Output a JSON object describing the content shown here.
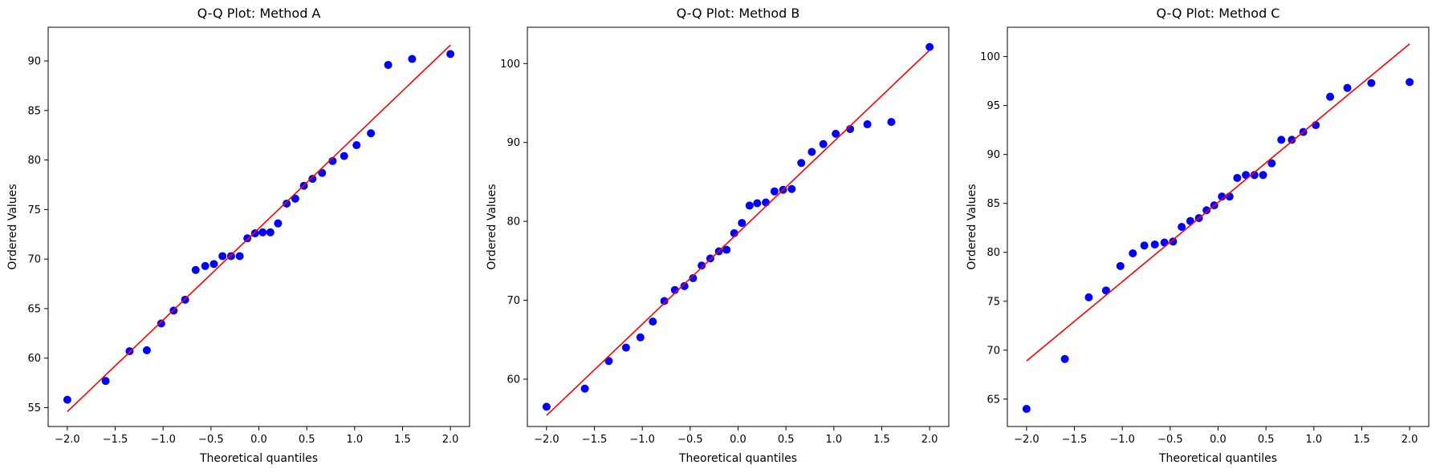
{
  "chart_data": [
    {
      "type": "scatter",
      "title": "Q-Q Plot: Method A",
      "xlabel": "Theoretical quantiles",
      "ylabel": "Ordered Values",
      "xlim": [
        -2.2,
        2.2
      ],
      "ylim": [
        53.1,
        93.4
      ],
      "xticks": [
        -2.0,
        -1.5,
        -1.0,
        -0.5,
        0.0,
        0.5,
        1.0,
        1.5,
        2.0
      ],
      "xtick_labels": [
        "−2.0",
        "−1.5",
        "−1.0",
        "−0.5",
        "0.0",
        "0.5",
        "1.0",
        "1.5",
        "2.0"
      ],
      "yticks": [
        55,
        60,
        65,
        70,
        75,
        80,
        85,
        90
      ],
      "ytick_labels": [
        "55",
        "60",
        "65",
        "70",
        "75",
        "80",
        "85",
        "90"
      ],
      "grid": false,
      "point_color": "#0000ff",
      "line_color": "#ff0000",
      "points": {
        "x": [
          -2.0,
          -1.6,
          -1.35,
          -1.17,
          -1.02,
          -0.89,
          -0.77,
          -0.66,
          -0.56,
          -0.47,
          -0.38,
          -0.29,
          -0.2,
          -0.12,
          -0.04,
          0.04,
          0.12,
          0.2,
          0.29,
          0.38,
          0.47,
          0.56,
          0.66,
          0.77,
          0.89,
          1.02,
          1.17,
          1.35,
          1.6,
          2.0
        ],
        "y": [
          55.8,
          57.7,
          60.7,
          60.8,
          63.5,
          64.8,
          65.9,
          68.9,
          69.3,
          69.5,
          70.3,
          70.3,
          70.3,
          72.1,
          72.6,
          72.7,
          72.7,
          73.6,
          75.6,
          76.1,
          77.4,
          78.1,
          78.7,
          79.9,
          80.4,
          81.5,
          82.7,
          89.6,
          90.2,
          90.7
        ]
      },
      "fit_line": {
        "x": [
          -2.0,
          2.0
        ],
        "y": [
          54.6,
          91.6
        ]
      }
    },
    {
      "type": "scatter",
      "title": "Q-Q Plot: Method B",
      "xlabel": "Theoretical quantiles",
      "ylabel": "Ordered Values",
      "xlim": [
        -2.2,
        2.2
      ],
      "ylim": [
        54.0,
        104.6
      ],
      "xticks": [
        -2.0,
        -1.5,
        -1.0,
        -0.5,
        0.0,
        0.5,
        1.0,
        1.5,
        2.0
      ],
      "xtick_labels": [
        "−2.0",
        "−1.5",
        "−1.0",
        "−0.5",
        "0.0",
        "0.5",
        "1.0",
        "1.5",
        "2.0"
      ],
      "yticks": [
        60,
        70,
        80,
        90,
        100
      ],
      "ytick_labels": [
        "60",
        "70",
        "80",
        "90",
        "100"
      ],
      "grid": false,
      "point_color": "#0000ff",
      "line_color": "#ff0000",
      "points": {
        "x": [
          -2.0,
          -1.6,
          -1.35,
          -1.17,
          -1.02,
          -0.89,
          -0.77,
          -0.66,
          -0.56,
          -0.47,
          -0.38,
          -0.29,
          -0.2,
          -0.12,
          -0.04,
          0.04,
          0.12,
          0.2,
          0.29,
          0.38,
          0.47,
          0.56,
          0.66,
          0.77,
          0.89,
          1.02,
          1.17,
          1.35,
          1.6,
          2.0
        ],
        "y": [
          56.5,
          58.8,
          62.3,
          64.0,
          65.3,
          67.3,
          69.9,
          71.3,
          71.8,
          72.8,
          74.4,
          75.3,
          76.2,
          76.4,
          78.5,
          79.8,
          82.0,
          82.3,
          82.4,
          83.8,
          84.0,
          84.1,
          87.4,
          88.8,
          89.8,
          91.1,
          91.7,
          92.3,
          92.6,
          102.1
        ]
      },
      "fit_line": {
        "x": [
          -2.0,
          2.0
        ],
        "y": [
          55.4,
          101.7
        ]
      }
    },
    {
      "type": "scatter",
      "title": "Q-Q Plot: Method C",
      "xlabel": "Theoretical quantiles",
      "ylabel": "Ordered Values",
      "xlim": [
        -2.2,
        2.2
      ],
      "ylim": [
        62.2,
        103.0
      ],
      "xticks": [
        -2.0,
        -1.5,
        -1.0,
        -0.5,
        0.0,
        0.5,
        1.0,
        1.5,
        2.0
      ],
      "xtick_labels": [
        "−2.0",
        "−1.5",
        "−1.0",
        "−0.5",
        "0.0",
        "0.5",
        "1.0",
        "1.5",
        "2.0"
      ],
      "yticks": [
        65,
        70,
        75,
        80,
        85,
        90,
        95,
        100
      ],
      "ytick_labels": [
        "65",
        "70",
        "75",
        "80",
        "85",
        "90",
        "95",
        "100"
      ],
      "grid": false,
      "point_color": "#0000ff",
      "line_color": "#ff0000",
      "points": {
        "x": [
          -2.0,
          -1.6,
          -1.35,
          -1.17,
          -1.02,
          -0.89,
          -0.77,
          -0.66,
          -0.56,
          -0.47,
          -0.38,
          -0.29,
          -0.2,
          -0.12,
          -0.04,
          0.04,
          0.12,
          0.2,
          0.29,
          0.38,
          0.47,
          0.56,
          0.66,
          0.77,
          0.89,
          1.02,
          1.17,
          1.35,
          1.6,
          2.0
        ],
        "y": [
          64.0,
          69.1,
          75.4,
          76.1,
          78.6,
          79.9,
          80.7,
          80.8,
          81.0,
          81.1,
          82.6,
          83.2,
          83.5,
          84.3,
          84.8,
          85.7,
          85.7,
          87.6,
          87.9,
          87.9,
          87.9,
          89.1,
          91.5,
          91.5,
          92.3,
          93.0,
          95.9,
          96.8,
          97.3,
          97.4
        ]
      },
      "fit_line": {
        "x": [
          -2.0,
          2.0
        ],
        "y": [
          68.9,
          101.3
        ]
      }
    }
  ]
}
